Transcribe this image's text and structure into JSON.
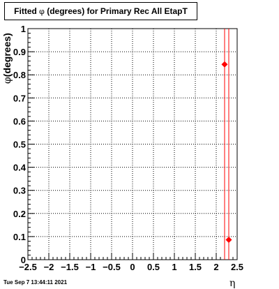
{
  "title": {
    "prefix": "Fitted ",
    "symbol": "φ",
    "suffix": " (degrees) for Primary Rec All EtapT"
  },
  "timestamp": "Tue Sep  7 13:44:11 2021",
  "chart_data": {
    "type": "scatter",
    "xlabel": "η",
    "ylabel": {
      "symbol": "φ",
      "text": "(degrees)"
    },
    "xlim": [
      -2.5,
      2.5
    ],
    "ylim": [
      0,
      1
    ],
    "grid": true,
    "x_ticks": [
      -2.5,
      -2,
      -1.5,
      -1,
      -0.5,
      0,
      0.5,
      1,
      1.5,
      2,
      2.5
    ],
    "x_tick_labels": [
      "−2.5",
      "−2",
      "−1.5",
      "−1",
      "−0.5",
      "0",
      "0.5",
      "1",
      "1.5",
      "2",
      "2.5"
    ],
    "y_ticks": [
      0,
      0.1,
      0.2,
      0.3,
      0.4,
      0.5,
      0.6,
      0.7,
      0.8,
      0.9,
      1
    ],
    "y_tick_labels": [
      "0",
      "0.1",
      "0.2",
      "0.3",
      "0.4",
      "0.5",
      "0.6",
      "0.7",
      "0.8",
      "0.9",
      "1"
    ],
    "marker_color": "#ff0000",
    "points": [
      {
        "x": 2.2,
        "y": 0.845
      },
      {
        "x": 2.3,
        "y": 0.086
      }
    ]
  }
}
